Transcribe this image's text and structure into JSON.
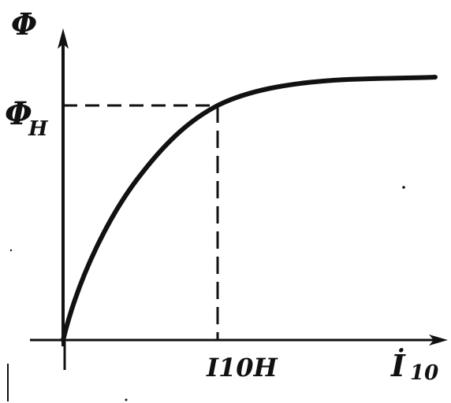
{
  "labels": {
    "y_axis": "Φ",
    "y_nominal_main": "Φ",
    "y_nominal_sub": "H",
    "x_nominal": "I10H",
    "x_axis_main": "İ",
    "x_axis_sub": "10"
  },
  "style": {
    "ink_color": "#111111",
    "paper_color": "#ffffff"
  }
}
